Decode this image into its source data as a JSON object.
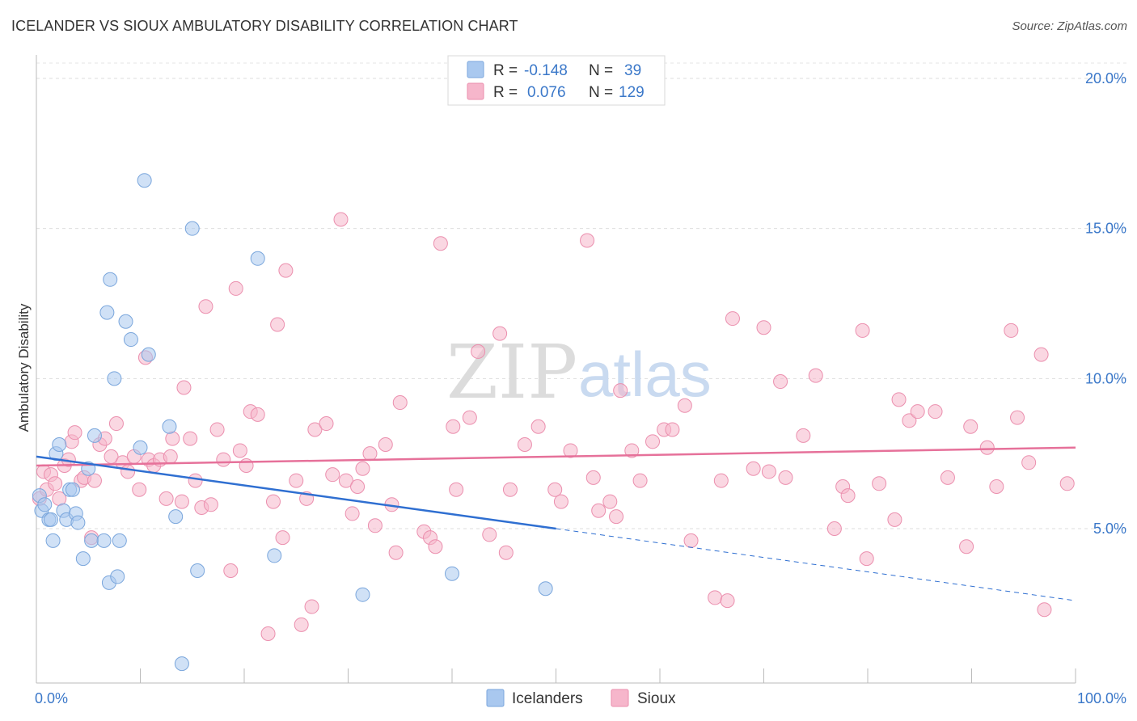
{
  "header": {
    "title": "ICELANDER VS SIOUX AMBULATORY DISABILITY CORRELATION CHART",
    "source": "Source: ZipAtlas.com"
  },
  "legend": {
    "r_label": "R =",
    "n_label": "N =",
    "rows": [
      {
        "r": "-0.148",
        "n": "39",
        "color": "#a9c8ef"
      },
      {
        "r": "0.076",
        "n": "129",
        "color": "#f6b6cb"
      }
    ]
  },
  "watermark": {
    "zip": "ZIP",
    "atlas": "atlas"
  },
  "chart_data": {
    "type": "scatter",
    "title": "ICELANDER VS SIOUX AMBULATORY DISABILITY CORRELATION CHART",
    "ylabel": "Ambulatory Disability",
    "xlabel": "",
    "xlim": [
      0,
      100
    ],
    "ylim": [
      0,
      21
    ],
    "x_tick_labels": [
      {
        "value": 0,
        "label": "0.0%"
      },
      {
        "value": 100,
        "label": "100.0%"
      }
    ],
    "y_ticks": [
      {
        "value": 5,
        "label": "5.0%"
      },
      {
        "value": 10,
        "label": "10.0%"
      },
      {
        "value": 15,
        "label": "15.0%"
      },
      {
        "value": 20,
        "label": "20.0%"
      }
    ],
    "grid": true,
    "legend_position": "top-center",
    "series": [
      {
        "name": "Icelanders",
        "color": "#a9c8ef",
        "stroke": "#7aa6dc",
        "line_color": "#2f6fd1",
        "trend": {
          "x0": 0,
          "y0": 7.4,
          "x1": 50,
          "y1": 5.0,
          "dash_to_x": 100,
          "dash_to_y": 2.6
        },
        "points": [
          [
            0.3,
            6.1
          ],
          [
            0.5,
            5.6
          ],
          [
            0.8,
            5.8
          ],
          [
            1.2,
            5.3
          ],
          [
            1.4,
            5.3
          ],
          [
            1.6,
            4.6
          ],
          [
            1.9,
            7.5
          ],
          [
            2.2,
            7.8
          ],
          [
            2.6,
            5.6
          ],
          [
            2.9,
            5.3
          ],
          [
            3.2,
            6.3
          ],
          [
            3.5,
            6.3
          ],
          [
            3.8,
            5.5
          ],
          [
            4.0,
            5.2
          ],
          [
            4.5,
            4.0
          ],
          [
            5.0,
            7.0
          ],
          [
            5.3,
            4.6
          ],
          [
            5.6,
            8.1
          ],
          [
            6.5,
            4.6
          ],
          [
            6.8,
            12.2
          ],
          [
            7.0,
            3.2
          ],
          [
            7.1,
            13.3
          ],
          [
            7.5,
            10.0
          ],
          [
            7.8,
            3.4
          ],
          [
            8.0,
            4.6
          ],
          [
            8.6,
            11.9
          ],
          [
            9.1,
            11.3
          ],
          [
            10.0,
            7.7
          ],
          [
            10.4,
            16.6
          ],
          [
            10.8,
            10.8
          ],
          [
            12.8,
            8.4
          ],
          [
            13.4,
            5.4
          ],
          [
            14.0,
            0.5
          ],
          [
            15.0,
            15.0
          ],
          [
            15.5,
            3.6
          ],
          [
            21.3,
            14.0
          ],
          [
            22.9,
            4.1
          ],
          [
            31.4,
            2.8
          ],
          [
            40.0,
            3.5
          ],
          [
            49.0,
            3.0
          ]
        ]
      },
      {
        "name": "Sioux",
        "color": "#f6b6cb",
        "stroke": "#eb8fae",
        "line_color": "#e6719a",
        "trend": {
          "x0": 0,
          "y0": 7.1,
          "x1": 100,
          "y1": 7.7
        },
        "points": [
          [
            0.3,
            6.0
          ],
          [
            0.7,
            6.9
          ],
          [
            1.0,
            6.3
          ],
          [
            1.4,
            6.8
          ],
          [
            1.8,
            6.5
          ],
          [
            2.2,
            6.0
          ],
          [
            2.7,
            7.1
          ],
          [
            3.1,
            7.3
          ],
          [
            3.4,
            7.9
          ],
          [
            3.7,
            8.2
          ],
          [
            4.3,
            6.6
          ],
          [
            4.6,
            6.7
          ],
          [
            5.3,
            4.7
          ],
          [
            5.6,
            6.6
          ],
          [
            6.1,
            7.8
          ],
          [
            6.6,
            8.0
          ],
          [
            7.2,
            7.4
          ],
          [
            7.7,
            8.5
          ],
          [
            8.3,
            7.2
          ],
          [
            8.8,
            6.9
          ],
          [
            9.4,
            7.4
          ],
          [
            9.9,
            6.3
          ],
          [
            10.5,
            10.7
          ],
          [
            10.8,
            7.3
          ],
          [
            11.3,
            7.1
          ],
          [
            11.9,
            7.3
          ],
          [
            12.5,
            6.0
          ],
          [
            12.9,
            7.4
          ],
          [
            13.1,
            8.0
          ],
          [
            14.0,
            5.9
          ],
          [
            14.2,
            9.7
          ],
          [
            14.8,
            8.0
          ],
          [
            15.3,
            6.6
          ],
          [
            15.9,
            5.7
          ],
          [
            16.3,
            12.4
          ],
          [
            16.8,
            5.8
          ],
          [
            17.4,
            8.3
          ],
          [
            18.0,
            7.3
          ],
          [
            18.7,
            3.6
          ],
          [
            19.2,
            13.0
          ],
          [
            19.6,
            7.6
          ],
          [
            20.2,
            7.1
          ],
          [
            20.6,
            8.9
          ],
          [
            21.3,
            8.8
          ],
          [
            22.3,
            1.5
          ],
          [
            22.8,
            5.9
          ],
          [
            23.2,
            11.8
          ],
          [
            23.7,
            4.7
          ],
          [
            24.0,
            13.6
          ],
          [
            25.0,
            6.6
          ],
          [
            25.5,
            1.8
          ],
          [
            26.0,
            6.0
          ],
          [
            26.5,
            2.4
          ],
          [
            26.8,
            8.3
          ],
          [
            27.9,
            8.5
          ],
          [
            28.5,
            6.8
          ],
          [
            29.3,
            15.3
          ],
          [
            29.8,
            6.6
          ],
          [
            30.4,
            5.5
          ],
          [
            30.9,
            6.4
          ],
          [
            31.4,
            7.0
          ],
          [
            32.1,
            7.5
          ],
          [
            32.6,
            5.1
          ],
          [
            33.6,
            7.8
          ],
          [
            34.2,
            5.8
          ],
          [
            34.6,
            4.2
          ],
          [
            35.0,
            9.2
          ],
          [
            37.3,
            4.9
          ],
          [
            37.9,
            4.7
          ],
          [
            38.4,
            4.4
          ],
          [
            38.9,
            14.5
          ],
          [
            40.1,
            8.4
          ],
          [
            40.4,
            6.3
          ],
          [
            41.7,
            8.7
          ],
          [
            42.5,
            10.9
          ],
          [
            43.6,
            4.8
          ],
          [
            44.6,
            11.5
          ],
          [
            45.2,
            4.2
          ],
          [
            45.6,
            6.3
          ],
          [
            47.0,
            7.8
          ],
          [
            48.3,
            8.4
          ],
          [
            49.9,
            6.3
          ],
          [
            50.5,
            5.9
          ],
          [
            51.4,
            7.6
          ],
          [
            53.0,
            14.6
          ],
          [
            53.6,
            6.7
          ],
          [
            54.1,
            5.6
          ],
          [
            55.2,
            5.9
          ],
          [
            55.8,
            5.4
          ],
          [
            56.2,
            9.6
          ],
          [
            57.3,
            7.6
          ],
          [
            58.1,
            6.6
          ],
          [
            59.3,
            7.9
          ],
          [
            60.4,
            8.3
          ],
          [
            61.2,
            8.3
          ],
          [
            62.4,
            9.1
          ],
          [
            63.0,
            4.6
          ],
          [
            65.3,
            2.7
          ],
          [
            65.9,
            6.6
          ],
          [
            66.5,
            2.6
          ],
          [
            67.0,
            12.0
          ],
          [
            69.0,
            7.0
          ],
          [
            70.0,
            11.7
          ],
          [
            70.5,
            6.9
          ],
          [
            71.6,
            9.9
          ],
          [
            72.1,
            6.7
          ],
          [
            73.8,
            8.1
          ],
          [
            75.0,
            10.1
          ],
          [
            76.8,
            5.0
          ],
          [
            77.6,
            6.4
          ],
          [
            78.1,
            6.1
          ],
          [
            79.5,
            11.6
          ],
          [
            79.9,
            4.0
          ],
          [
            81.1,
            6.5
          ],
          [
            82.6,
            5.3
          ],
          [
            83.0,
            9.3
          ],
          [
            84.0,
            8.6
          ],
          [
            84.8,
            8.9
          ],
          [
            86.5,
            8.9
          ],
          [
            87.7,
            6.7
          ],
          [
            89.5,
            4.4
          ],
          [
            89.9,
            8.4
          ],
          [
            91.5,
            7.7
          ],
          [
            92.4,
            6.4
          ],
          [
            93.8,
            11.6
          ],
          [
            94.4,
            8.7
          ],
          [
            95.5,
            7.2
          ],
          [
            96.7,
            10.8
          ],
          [
            97.0,
            2.3
          ],
          [
            99.2,
            6.5
          ]
        ]
      }
    ]
  }
}
